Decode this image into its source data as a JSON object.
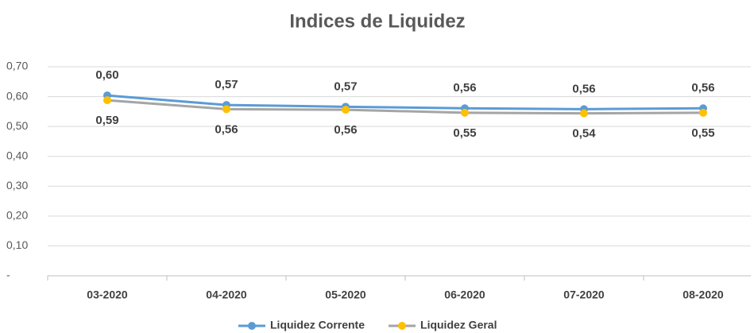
{
  "chart_data": {
    "type": "line",
    "title": "Indices de Liquidez",
    "categories": [
      "03-2020",
      "04-2020",
      "05-2020",
      "06-2020",
      "07-2020",
      "08-2020"
    ],
    "series": [
      {
        "name": "Liquidez Corrente",
        "color": "#5b9bd5",
        "marker_color": "#5b9bd5",
        "values": [
          0.604,
          0.572,
          0.566,
          0.561,
          0.558,
          0.561
        ],
        "value_labels": [
          "0,60",
          "0,57",
          "0,57",
          "0,56",
          "0,56",
          "0,56"
        ],
        "label_position": "above"
      },
      {
        "name": "Liquidez Geral",
        "color": "#a5a5a5",
        "marker_color": "#ffc000",
        "values": [
          0.588,
          0.558,
          0.556,
          0.546,
          0.544,
          0.546
        ],
        "value_labels": [
          "0,59",
          "0,56",
          "0,56",
          "0,55",
          "0,54",
          "0,55"
        ],
        "label_position": "below"
      }
    ],
    "ylim": [
      0,
      0.7
    ],
    "yticks": [
      {
        "value": 0,
        "label": "-"
      },
      {
        "value": 0.1,
        "label": "0,10"
      },
      {
        "value": 0.2,
        "label": "0,20"
      },
      {
        "value": 0.3,
        "label": "0,30"
      },
      {
        "value": 0.4,
        "label": "0,40"
      },
      {
        "value": 0.5,
        "label": "0,50"
      },
      {
        "value": 0.6,
        "label": "0,60"
      },
      {
        "value": 0.7,
        "label": "0,70"
      }
    ],
    "grid": true,
    "legend": "bottom"
  }
}
